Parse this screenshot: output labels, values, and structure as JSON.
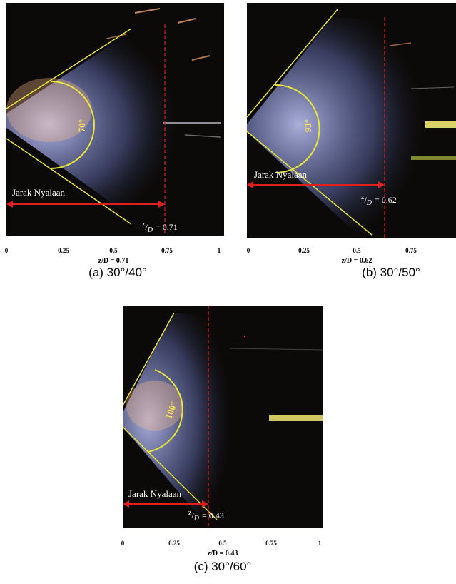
{
  "panels": [
    {
      "caption": "(a) 30°/40°",
      "angle_label": "70°",
      "jarak_label": "Jarak Nyalaan",
      "zd_value": "= 0.71",
      "zd_prefix": "z",
      "zd_den": "D",
      "xlabel": "z/D = 0.71",
      "ticks": [
        "0",
        "0.25",
        "0.5",
        "0.75",
        "1"
      ]
    },
    {
      "caption": "(b) 30°/50°",
      "angle_label": "93°",
      "jarak_label": "Jarak Nyalaan",
      "zd_value": "= 0.62",
      "zd_prefix": "z",
      "zd_den": "D",
      "xlabel": "z/D = 0.62",
      "ticks": [
        "0",
        "0.25",
        "0.5",
        "0.75"
      ]
    },
    {
      "caption": "(c) 30°/60°",
      "angle_label": "100°",
      "jarak_label": "Jarak Nyalaan",
      "zd_value": "= 0.43",
      "zd_prefix": "z",
      "zd_den": "D",
      "xlabel": "z/D = 0.43",
      "ticks": [
        "0",
        "0.25",
        "0.5",
        "0.75",
        "1"
      ]
    }
  ],
  "colors": {
    "background": "#0c0a08",
    "flame_core": "#fff6e0",
    "flame_glow": "#b9c3ff",
    "cone_line": "#e8e43a",
    "distance_arrow": "#e0201c",
    "dash_line": "#e0201c"
  }
}
